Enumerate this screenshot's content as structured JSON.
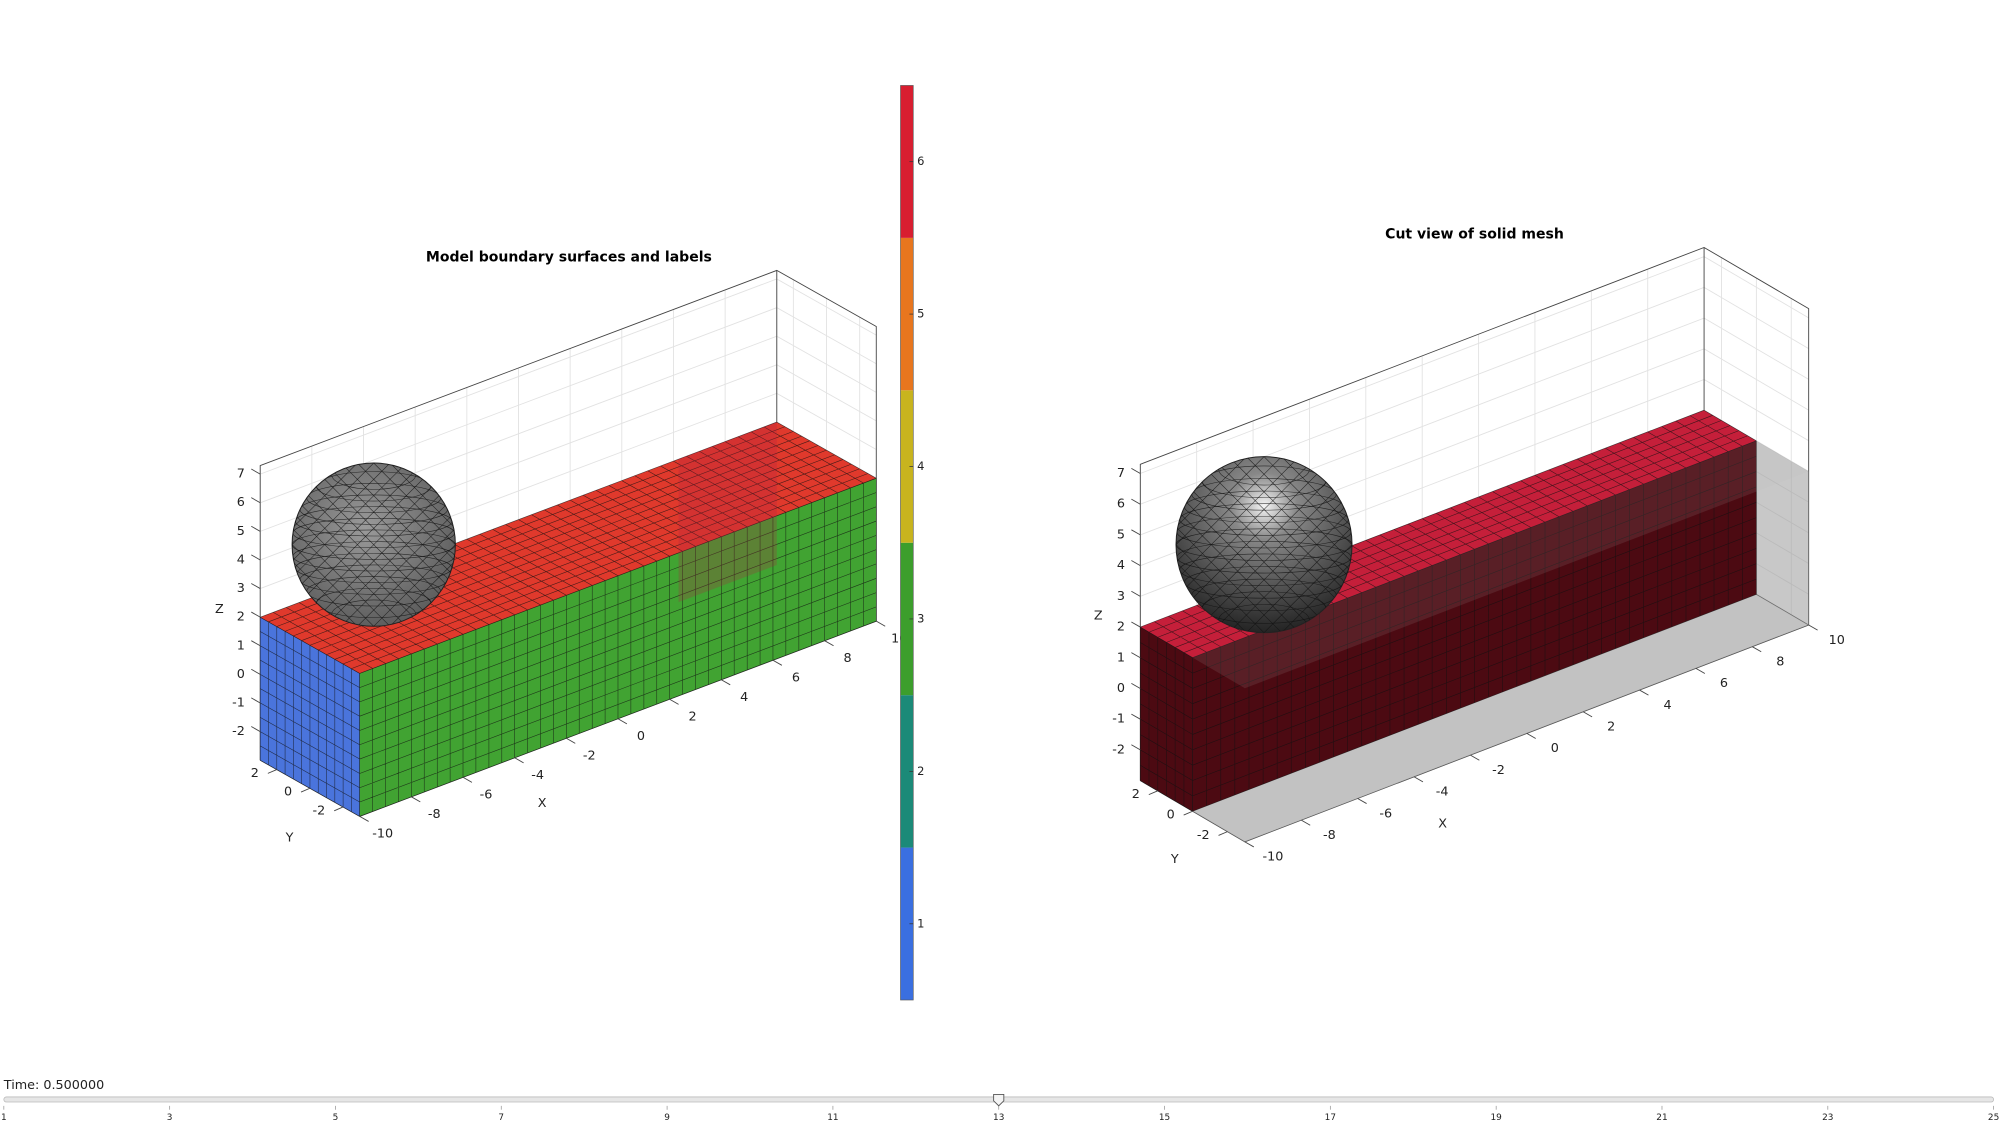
{
  "chart_data": [
    {
      "type": "mesh3d",
      "title": "Model boundary surfaces and labels",
      "xlabel": "X",
      "ylabel": "Y",
      "zlabel": "Z",
      "xlim": [
        -10,
        10
      ],
      "ylim": [
        -3,
        3
      ],
      "zlim": [
        -3,
        7.3
      ],
      "xticks": [
        -10,
        -8,
        -6,
        -4,
        -2,
        0,
        2,
        4,
        6,
        8,
        10
      ],
      "yticks": [
        -2,
        0,
        2
      ],
      "zticks": [
        -2,
        -1,
        0,
        1,
        2,
        3,
        4,
        5,
        6,
        7
      ],
      "grid": true
    },
    {
      "type": "colorbar",
      "ylim": [
        0.5,
        6.5
      ],
      "yticks": [
        1,
        2,
        3,
        4,
        5,
        6
      ],
      "colors": [
        "#3a6fe0",
        "#1b8a78",
        "#3c9e2c",
        "#c8b41e",
        "#e8761e",
        "#d81e30"
      ]
    },
    {
      "type": "mesh3d",
      "title": "Cut view of solid mesh",
      "xlabel": "X",
      "ylabel": "Y",
      "zlabel": "Z",
      "xlim": [
        -10,
        10
      ],
      "ylim": [
        -3,
        3
      ],
      "zlim": [
        -3,
        7.3
      ],
      "xticks": [
        -10,
        -8,
        -6,
        -4,
        -2,
        0,
        2,
        4,
        6,
        8,
        10
      ],
      "yticks": [
        -2,
        0,
        2
      ],
      "zticks": [
        -2,
        -1,
        0,
        1,
        2,
        3,
        4,
        5,
        6,
        7
      ],
      "grid": true
    }
  ],
  "slider": {
    "label": "Time: 0.500000",
    "lim": [
      1,
      25
    ],
    "value": 13,
    "ticks": [
      1,
      3,
      5,
      7,
      9,
      11,
      13,
      15,
      17,
      19,
      21,
      23,
      25
    ]
  }
}
